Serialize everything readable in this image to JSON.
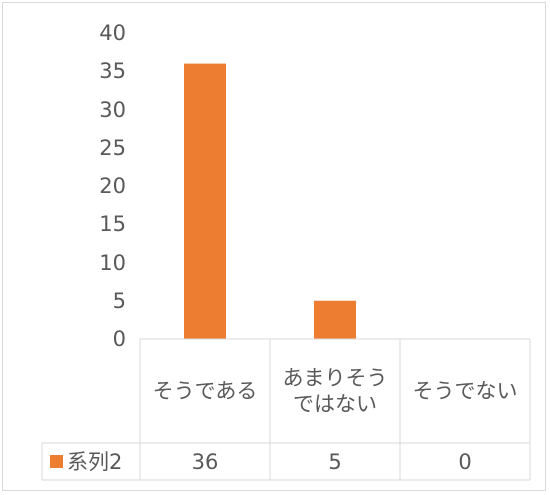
{
  "colors": {
    "bar": "#ED7D31",
    "grid": "#d9d9d9",
    "text": "#595959"
  },
  "chart_data": {
    "type": "bar",
    "categories": [
      "そうである",
      "あまりそうではない",
      "そうでない"
    ],
    "series": [
      {
        "name": "系列2",
        "values": [
          36,
          5,
          0
        ]
      }
    ],
    "ylim": [
      0,
      40
    ],
    "yticks": [
      0,
      5,
      10,
      15,
      20,
      25,
      30,
      35,
      40
    ],
    "grid": false,
    "data_table": true,
    "legend_placement": "data-table"
  }
}
